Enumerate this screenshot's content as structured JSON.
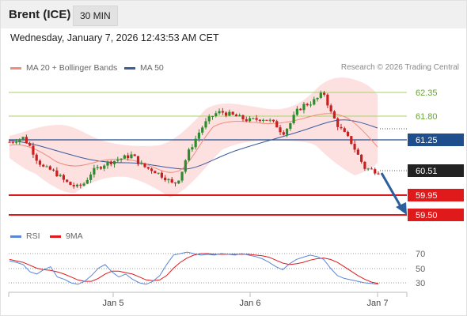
{
  "header": {
    "instrument": "Brent (ICE)",
    "timeframe": "30 MIN"
  },
  "timestamp": "Wednesday, January 7, 2026 12:43:53 AM CET",
  "legend": {
    "ma20_label": "MA 20 + Bollinger Bands",
    "ma50_label": "MA 50",
    "research": "Research © 2026 Trading Central"
  },
  "rsi_legend": {
    "rsi_label": "RSI",
    "ma_label": "9MA"
  },
  "colors": {
    "ma20": "#f08c7c",
    "ma50": "#3b5b9c",
    "bands": "#fdd8d8",
    "green_level": "#8bc34a",
    "blue_level": "#1e4e8c",
    "red_level": "#e0191b",
    "candle_up": "#2e8b2e",
    "candle_down": "#c82020",
    "arrow": "#2a5e9e",
    "rsi_line": "#5a86d8",
    "rsi_ma": "#e0191b"
  },
  "levels": [
    {
      "value": "62.35",
      "kind": "resistance"
    },
    {
      "value": "61.80",
      "kind": "resistance"
    },
    {
      "value": "61.25",
      "kind": "pivot"
    },
    {
      "value": "60.51",
      "kind": "last_price"
    },
    {
      "value": "59.95",
      "kind": "support"
    },
    {
      "value": "59.50",
      "kind": "support"
    }
  ],
  "rsi_axis": [
    "70",
    "50",
    "30"
  ],
  "x_axis": [
    "Jan 5",
    "Jan 6",
    "Jan 7"
  ],
  "chart_data": {
    "type": "candlestick",
    "title": "Brent (ICE)",
    "timeframe": "30 MIN",
    "price_levels": {
      "resistance": [
        62.35,
        61.8
      ],
      "pivot": 61.25,
      "last": 60.51,
      "support": [
        59.95,
        59.5
      ]
    },
    "x_tick_labels": [
      "Jan 5",
      "Jan 6",
      "Jan 7"
    ],
    "close_path": [
      61.2,
      61.25,
      61.3,
      61.1,
      60.8,
      60.6,
      60.55,
      60.45,
      60.3,
      60.2,
      60.15,
      60.25,
      60.5,
      60.6,
      60.7,
      60.75,
      60.8,
      60.85,
      60.9,
      60.7,
      60.6,
      60.55,
      60.45,
      60.35,
      60.2,
      60.4,
      60.9,
      61.2,
      61.5,
      61.7,
      61.85,
      61.9,
      61.85,
      61.8,
      61.75,
      61.7,
      61.72,
      61.75,
      61.7,
      61.6,
      61.4,
      61.6,
      61.9,
      62.05,
      62.1,
      62.2,
      62.35,
      61.9,
      61.6,
      61.4,
      61.2,
      60.9,
      60.6,
      60.55,
      60.51
    ],
    "rsi": {
      "axis_ticks": [
        70,
        50,
        30
      ],
      "series": [
        {
          "name": "RSI",
          "values": [
            60,
            58,
            55,
            45,
            42,
            48,
            52,
            38,
            35,
            30,
            28,
            32,
            40,
            50,
            55,
            45,
            38,
            42,
            35,
            30,
            28,
            32,
            40,
            55,
            68,
            70,
            72,
            70,
            68,
            69,
            68,
            70,
            69,
            68,
            70,
            68,
            66,
            63,
            58,
            52,
            48,
            56,
            62,
            65,
            68,
            66,
            62,
            50,
            40,
            36,
            34,
            32,
            30,
            29,
            28
          ]
        },
        {
          "name": "9MA",
          "values": [
            62,
            60,
            58,
            54,
            50,
            48,
            47,
            45,
            42,
            38,
            34,
            32,
            32,
            36,
            42,
            46,
            46,
            44,
            42,
            38,
            34,
            33,
            34,
            40,
            50,
            58,
            64,
            68,
            70,
            70,
            69,
            69,
            69,
            69,
            69,
            69,
            68,
            67,
            65,
            61,
            57,
            55,
            56,
            58,
            61,
            63,
            64,
            62,
            58,
            52,
            46,
            40,
            35,
            31,
            29
          ]
        }
      ]
    }
  }
}
